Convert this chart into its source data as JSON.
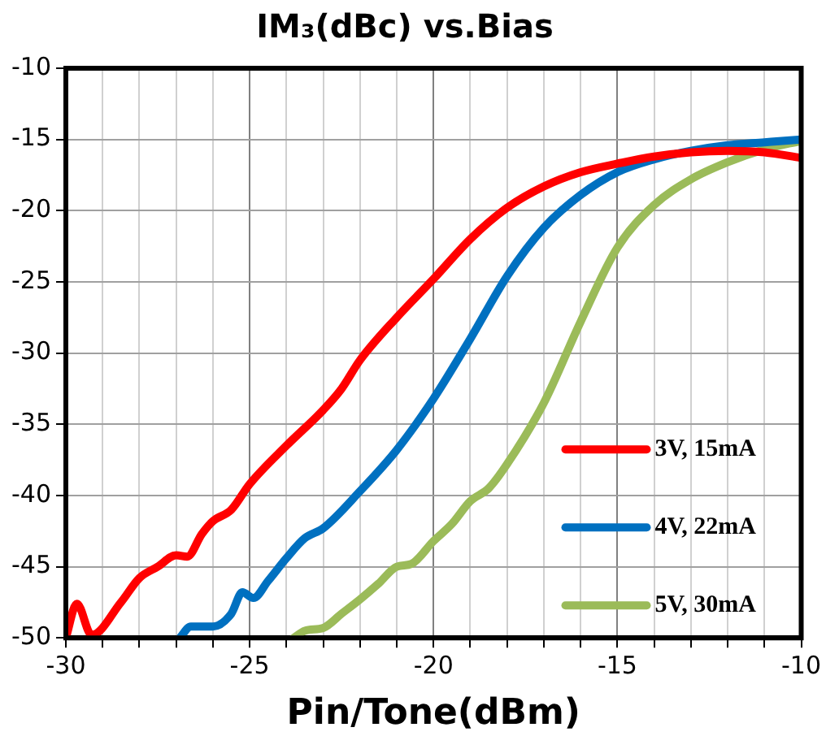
{
  "chart_data": {
    "type": "line",
    "title": "IM₃(dBc) vs.Bias",
    "xlabel": "Pin/Tone(dBm)",
    "xlim": [
      -30,
      -10
    ],
    "xticks": [
      -30,
      {
        "value": -29,
        "label": null
      },
      {
        "value": -28,
        "label": null
      },
      {
        "value": -27,
        "label": null
      },
      {
        "value": -26,
        "label": null
      },
      -25,
      {
        "value": -24,
        "label": null
      },
      {
        "value": -23,
        "label": null
      },
      {
        "value": -22,
        "label": null
      },
      {
        "value": -21,
        "label": null
      },
      -20,
      {
        "value": -19,
        "label": null
      },
      {
        "value": -18,
        "label": null
      },
      {
        "value": -17,
        "label": null
      },
      {
        "value": -16,
        "label": null
      },
      -15,
      {
        "value": -14,
        "label": null
      },
      {
        "value": -13,
        "label": null
      },
      {
        "value": -12,
        "label": null
      },
      {
        "value": -11,
        "label": null
      },
      -10
    ],
    "ylim": [
      -50,
      -10
    ],
    "yticks": [
      -50,
      -45,
      -40,
      -35,
      -30,
      -25,
      -20,
      -15,
      -10
    ],
    "grid": true,
    "legend": "bottom right",
    "marker": "none",
    "line_style": "solid",
    "series": [
      {
        "name": "3V, 15mA",
        "color": "#ff0000",
        "x": [
          -30,
          -29.7,
          -29.3,
          -28.5,
          -28,
          -27.5,
          -27,
          -26.7,
          -26.3,
          -26,
          -25.5,
          -25,
          -24,
          -23,
          -22.5,
          -22,
          -21,
          -20,
          -19,
          -18,
          -17,
          -16,
          -15,
          -14,
          -13,
          -12,
          -11,
          -10
        ],
        "values": [
          -50,
          -47.6,
          -49.8,
          -47.5,
          -45.8,
          -45,
          -44.2,
          -44.3,
          -42.7,
          -41.8,
          -41,
          -39.2,
          -36.5,
          -34,
          -32.5,
          -30.5,
          -27.5,
          -24.8,
          -22,
          -19.8,
          -18.3,
          -17.3,
          -16.7,
          -16.2,
          -15.9,
          -15.8,
          -15.9,
          -16.3
        ]
      },
      {
        "name": "4V, 22mA",
        "color": "#0070c0",
        "x": [
          -26.9,
          -26.6,
          -26,
          -25.5,
          -25.2,
          -24.9,
          -24.5,
          -24,
          -23.5,
          -23,
          -22,
          -21,
          -20,
          -19,
          -18,
          -17,
          -16,
          -15,
          -14,
          -13,
          -12,
          -11,
          -10
        ],
        "values": [
          -50,
          -49.2,
          -49.2,
          -48.3,
          -46.8,
          -47.2,
          -46,
          -44.4,
          -43,
          -42.3,
          -39.7,
          -36.8,
          -33.2,
          -29,
          -24.6,
          -21.2,
          -18.9,
          -17.3,
          -16.4,
          -15.8,
          -15.4,
          -15.2,
          -15
        ]
      },
      {
        "name": "5V, 30mA",
        "color": "#9bbb59",
        "x": [
          -23.8,
          -23.5,
          -23,
          -22.5,
          -22,
          -21.5,
          -21,
          -20.6,
          -20,
          -19.5,
          -19,
          -18.5,
          -18,
          -17,
          -16,
          -15,
          -14,
          -13,
          -12,
          -11,
          -10
        ],
        "values": [
          -50,
          -49.5,
          -49.3,
          -48.3,
          -47.3,
          -46.2,
          -45,
          -44.8,
          -43.2,
          -42,
          -40.4,
          -39.5,
          -37.8,
          -33.5,
          -27.8,
          -22.6,
          -19.6,
          -17.8,
          -16.6,
          -15.7,
          -15.1
        ]
      }
    ]
  }
}
